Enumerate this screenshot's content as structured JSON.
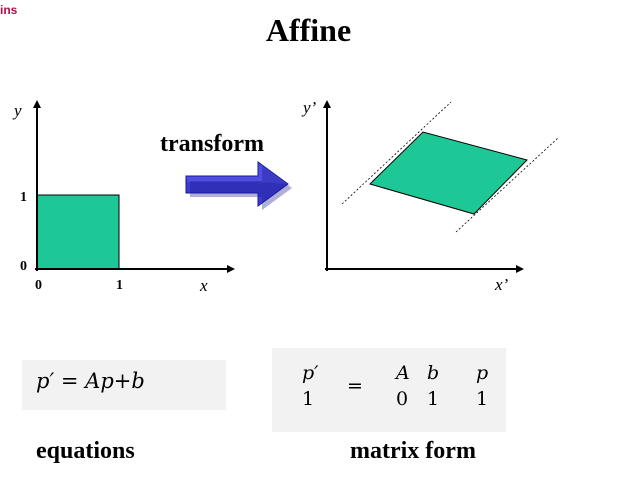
{
  "header": {
    "corner_text": "ins",
    "title": "Affine"
  },
  "diagram": {
    "arrow_label": "transform",
    "left_axes": {
      "y_label": "y",
      "x_label": "x",
      "tick_x_0": "0",
      "tick_x_1": "1",
      "tick_y_0": "0",
      "tick_y_1": "1"
    },
    "right_axes": {
      "y_label": "y’",
      "x_label": "x’"
    },
    "fill_color": "#1ec896",
    "arrow_color": "#2b2bd6"
  },
  "equation": {
    "p_prime": "p′",
    "equals": " = ",
    "A": "A",
    "p": "p",
    "plus": "+",
    "b": "b",
    "caption": "equations"
  },
  "matrix": {
    "lhs_top": "p′",
    "lhs_bottom": "1",
    "equals": "=",
    "m11": "A",
    "m12": "b",
    "m21": "0",
    "m22": "1",
    "rhs_top": "p",
    "rhs_bottom": "1",
    "caption": "matrix form"
  }
}
